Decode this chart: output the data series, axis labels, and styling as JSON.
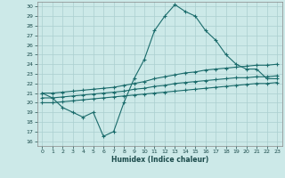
{
  "xlabel": "Humidex (Indice chaleur)",
  "background_color": "#cce9e8",
  "grid_color": "#aacfcf",
  "line_color": "#1a6b6b",
  "xlim": [
    -0.5,
    23.5
  ],
  "ylim": [
    15.5,
    30.5
  ],
  "xticks": [
    0,
    1,
    2,
    3,
    4,
    5,
    6,
    7,
    8,
    9,
    10,
    11,
    12,
    13,
    14,
    15,
    16,
    17,
    18,
    19,
    20,
    21,
    22,
    23
  ],
  "yticks": [
    16,
    17,
    18,
    19,
    20,
    21,
    22,
    23,
    24,
    25,
    26,
    27,
    28,
    29,
    30
  ],
  "x": [
    0,
    1,
    2,
    3,
    4,
    5,
    6,
    7,
    8,
    9,
    10,
    11,
    12,
    13,
    14,
    15,
    16,
    17,
    18,
    19,
    20,
    21,
    22,
    23
  ],
  "humidex_main": [
    21.0,
    20.5,
    19.5,
    19.0,
    18.5,
    19.0,
    16.5,
    17.0,
    20.0,
    22.5,
    24.5,
    27.5,
    29.0,
    30.2,
    29.5,
    29.0,
    27.5,
    26.5,
    25.0,
    24.0,
    23.5,
    23.5,
    22.5,
    22.5
  ],
  "line_upper": [
    21.0,
    21.0,
    21.1,
    21.2,
    21.3,
    21.4,
    21.5,
    21.6,
    21.8,
    22.0,
    22.2,
    22.5,
    22.7,
    22.9,
    23.1,
    23.2,
    23.4,
    23.5,
    23.6,
    23.7,
    23.8,
    23.9,
    23.9,
    24.0
  ],
  "line_mid": [
    20.5,
    20.5,
    20.6,
    20.7,
    20.8,
    20.9,
    21.0,
    21.1,
    21.2,
    21.4,
    21.5,
    21.7,
    21.8,
    22.0,
    22.1,
    22.2,
    22.3,
    22.4,
    22.5,
    22.6,
    22.6,
    22.7,
    22.7,
    22.8
  ],
  "line_lower": [
    20.0,
    20.0,
    20.1,
    20.2,
    20.3,
    20.4,
    20.5,
    20.6,
    20.7,
    20.8,
    20.9,
    21.0,
    21.1,
    21.2,
    21.3,
    21.4,
    21.5,
    21.6,
    21.7,
    21.8,
    21.9,
    22.0,
    22.0,
    22.1
  ]
}
